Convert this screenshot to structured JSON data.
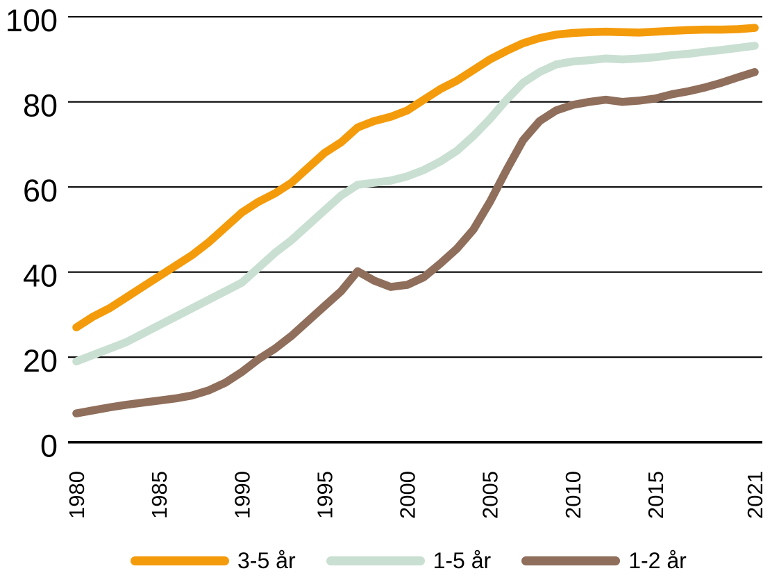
{
  "chart_data": {
    "type": "line",
    "title": "",
    "x": [
      1980,
      1981,
      1982,
      1983,
      1984,
      1985,
      1986,
      1987,
      1988,
      1989,
      1990,
      1991,
      1992,
      1993,
      1994,
      1995,
      1996,
      1997,
      1998,
      1999,
      2000,
      2001,
      2002,
      2003,
      2004,
      2005,
      2006,
      2007,
      2008,
      2009,
      2010,
      2011,
      2012,
      2013,
      2014,
      2015,
      2016,
      2017,
      2018,
      2019,
      2020,
      2021
    ],
    "x_tick_labels": [
      "1980",
      "1985",
      "1990",
      "1995",
      "2000",
      "2005",
      "2010",
      "2015",
      "2021"
    ],
    "y_ticks": [
      0,
      20,
      40,
      60,
      80,
      100
    ],
    "ylim": [
      0,
      100
    ],
    "xlabel": "",
    "ylabel": "",
    "grid": "horizontal-only",
    "legend_position": "bottom-center",
    "axis_color": "#000000",
    "background": "#FFFFFF",
    "series": [
      {
        "name": "3-5 år",
        "color": "#F49B0B",
        "values": [
          27,
          29.5,
          31.5,
          34,
          36.5,
          39,
          41.5,
          44,
          47,
          50.5,
          54,
          56.5,
          58.5,
          61,
          64.5,
          68,
          70.5,
          74,
          75.5,
          76.5,
          78,
          80.5,
          83,
          85,
          87.5,
          90,
          92,
          93.8,
          95,
          95.8,
          96.2,
          96.4,
          96.5,
          96.4,
          96.3,
          96.5,
          96.7,
          96.9,
          97,
          97,
          97.1,
          97.4
        ]
      },
      {
        "name": "1-5 år",
        "color": "#C9DFD2",
        "values": [
          19,
          20.5,
          22,
          23.5,
          25.5,
          27.5,
          29.5,
          31.5,
          33.5,
          35.5,
          37.5,
          41,
          44.5,
          47.5,
          51,
          54.5,
          58,
          60.5,
          61,
          61.5,
          62.5,
          64,
          66,
          68.5,
          72,
          76,
          80.5,
          84.5,
          87,
          88.8,
          89.5,
          89.8,
          90.2,
          90,
          90.2,
          90.5,
          91,
          91.3,
          91.8,
          92.2,
          92.7,
          93.2
        ]
      },
      {
        "name": "1-2 år",
        "color": "#8F6E5B",
        "values": [
          6.8,
          7.5,
          8.2,
          8.8,
          9.3,
          9.8,
          10.3,
          11,
          12.2,
          14,
          16.5,
          19.5,
          22,
          25,
          28.5,
          32,
          35.5,
          40.2,
          38,
          36.5,
          37,
          38.8,
          42,
          45.5,
          50,
          56.5,
          64,
          71,
          75.5,
          78,
          79.3,
          80,
          80.5,
          80,
          80.3,
          80.8,
          81.8,
          82.5,
          83.4,
          84.5,
          85.8,
          87
        ]
      }
    ]
  }
}
